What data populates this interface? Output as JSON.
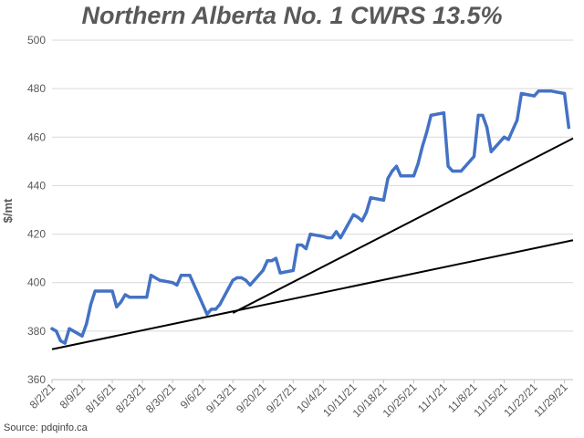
{
  "title": "Northern Alberta No. 1 CWRS 13.5%",
  "source": "Source: pdqinfo.ca",
  "colors": {
    "series": "#4472C4",
    "trend": "#000000",
    "grid": "#d9d9d9",
    "text": "#595959"
  },
  "chart_data": {
    "type": "line",
    "title": "Northern Alberta No. 1 CWRS 13.5%",
    "xlabel": "",
    "ylabel": "$/mt",
    "ylim": [
      360,
      500
    ],
    "yticks": [
      360,
      380,
      400,
      420,
      440,
      460,
      480,
      500
    ],
    "xlim": [
      "2021-08-02",
      "2021-12-01"
    ],
    "xtick_labels": [
      "8/2/21",
      "8/9/21",
      "8/16/21",
      "8/23/21",
      "8/30/21",
      "9/6/21",
      "9/13/21",
      "9/20/21",
      "9/27/21",
      "10/4/21",
      "10/11/21",
      "10/18/21",
      "10/25/21",
      "11/1/21",
      "11/8/21",
      "11/15/21",
      "11/22/21",
      "11/29/21"
    ],
    "xtick_dates": [
      "2021-08-02",
      "2021-08-09",
      "2021-08-16",
      "2021-08-23",
      "2021-08-30",
      "2021-09-06",
      "2021-09-13",
      "2021-09-20",
      "2021-09-27",
      "2021-10-04",
      "2021-10-11",
      "2021-10-18",
      "2021-10-25",
      "2021-11-01",
      "2021-11-08",
      "2021-11-15",
      "2021-11-22",
      "2021-11-29"
    ],
    "grid": true,
    "legend": "none",
    "series": [
      {
        "x": [
          "2021-08-02",
          "2021-08-03",
          "2021-08-04",
          "2021-08-05",
          "2021-08-06",
          "2021-08-09",
          "2021-08-10",
          "2021-08-11",
          "2021-08-12",
          "2021-08-13",
          "2021-08-16",
          "2021-08-17",
          "2021-08-18",
          "2021-08-19",
          "2021-08-20",
          "2021-08-23",
          "2021-08-24",
          "2021-08-25",
          "2021-08-26",
          "2021-08-27",
          "2021-08-30",
          "2021-08-31",
          "2021-09-01",
          "2021-09-02",
          "2021-09-03",
          "2021-09-07",
          "2021-09-08",
          "2021-09-09",
          "2021-09-10",
          "2021-09-13",
          "2021-09-14",
          "2021-09-15",
          "2021-09-16",
          "2021-09-17",
          "2021-09-20",
          "2021-09-21",
          "2021-09-22",
          "2021-09-23",
          "2021-09-24",
          "2021-09-27",
          "2021-09-28",
          "2021-09-29",
          "2021-09-30",
          "2021-10-01",
          "2021-10-04",
          "2021-10-05",
          "2021-10-06",
          "2021-10-07",
          "2021-10-08",
          "2021-10-11",
          "2021-10-12",
          "2021-10-13",
          "2021-10-14",
          "2021-10-15",
          "2021-10-18",
          "2021-10-19",
          "2021-10-20",
          "2021-10-21",
          "2021-10-22",
          "2021-10-25",
          "2021-10-26",
          "2021-10-27",
          "2021-10-28",
          "2021-10-29",
          "2021-11-01",
          "2021-11-02",
          "2021-11-03",
          "2021-11-04",
          "2021-11-05",
          "2021-11-08",
          "2021-11-09",
          "2021-11-10",
          "2021-11-11",
          "2021-11-12",
          "2021-11-15",
          "2021-11-16",
          "2021-11-17",
          "2021-11-18",
          "2021-11-19",
          "2021-11-22",
          "2021-11-23",
          "2021-11-24",
          "2021-11-25",
          "2021-11-26",
          "2021-11-29",
          "2021-11-30"
        ],
        "y": [
          381,
          380,
          376,
          375,
          381,
          378,
          383,
          391,
          396.5,
          396.5,
          396.5,
          390,
          392,
          395,
          394,
          394,
          394,
          403,
          402,
          401,
          400,
          399,
          403,
          403,
          403,
          387,
          389,
          389,
          391,
          401,
          402,
          402,
          401,
          399,
          405,
          409,
          409,
          410,
          404,
          405,
          415.5,
          415.5,
          414,
          420,
          419,
          418.5,
          418.5,
          421,
          418.5,
          428,
          427,
          425.5,
          429,
          435,
          434,
          443,
          446,
          448,
          444,
          444,
          449,
          456,
          462,
          469,
          470,
          448,
          446,
          446,
          446,
          452,
          469,
          469,
          464,
          454,
          460,
          459,
          463,
          467,
          478,
          477,
          479,
          479,
          479,
          479,
          478,
          464
        ]
      }
    ],
    "trendlines": [
      {
        "x": [
          "2021-08-02",
          "2021-12-01"
        ],
        "y": [
          372.5,
          417.5
        ]
      },
      {
        "x": [
          "2021-09-13",
          "2021-12-01"
        ],
        "y": [
          387.5,
          459.5
        ]
      }
    ]
  }
}
